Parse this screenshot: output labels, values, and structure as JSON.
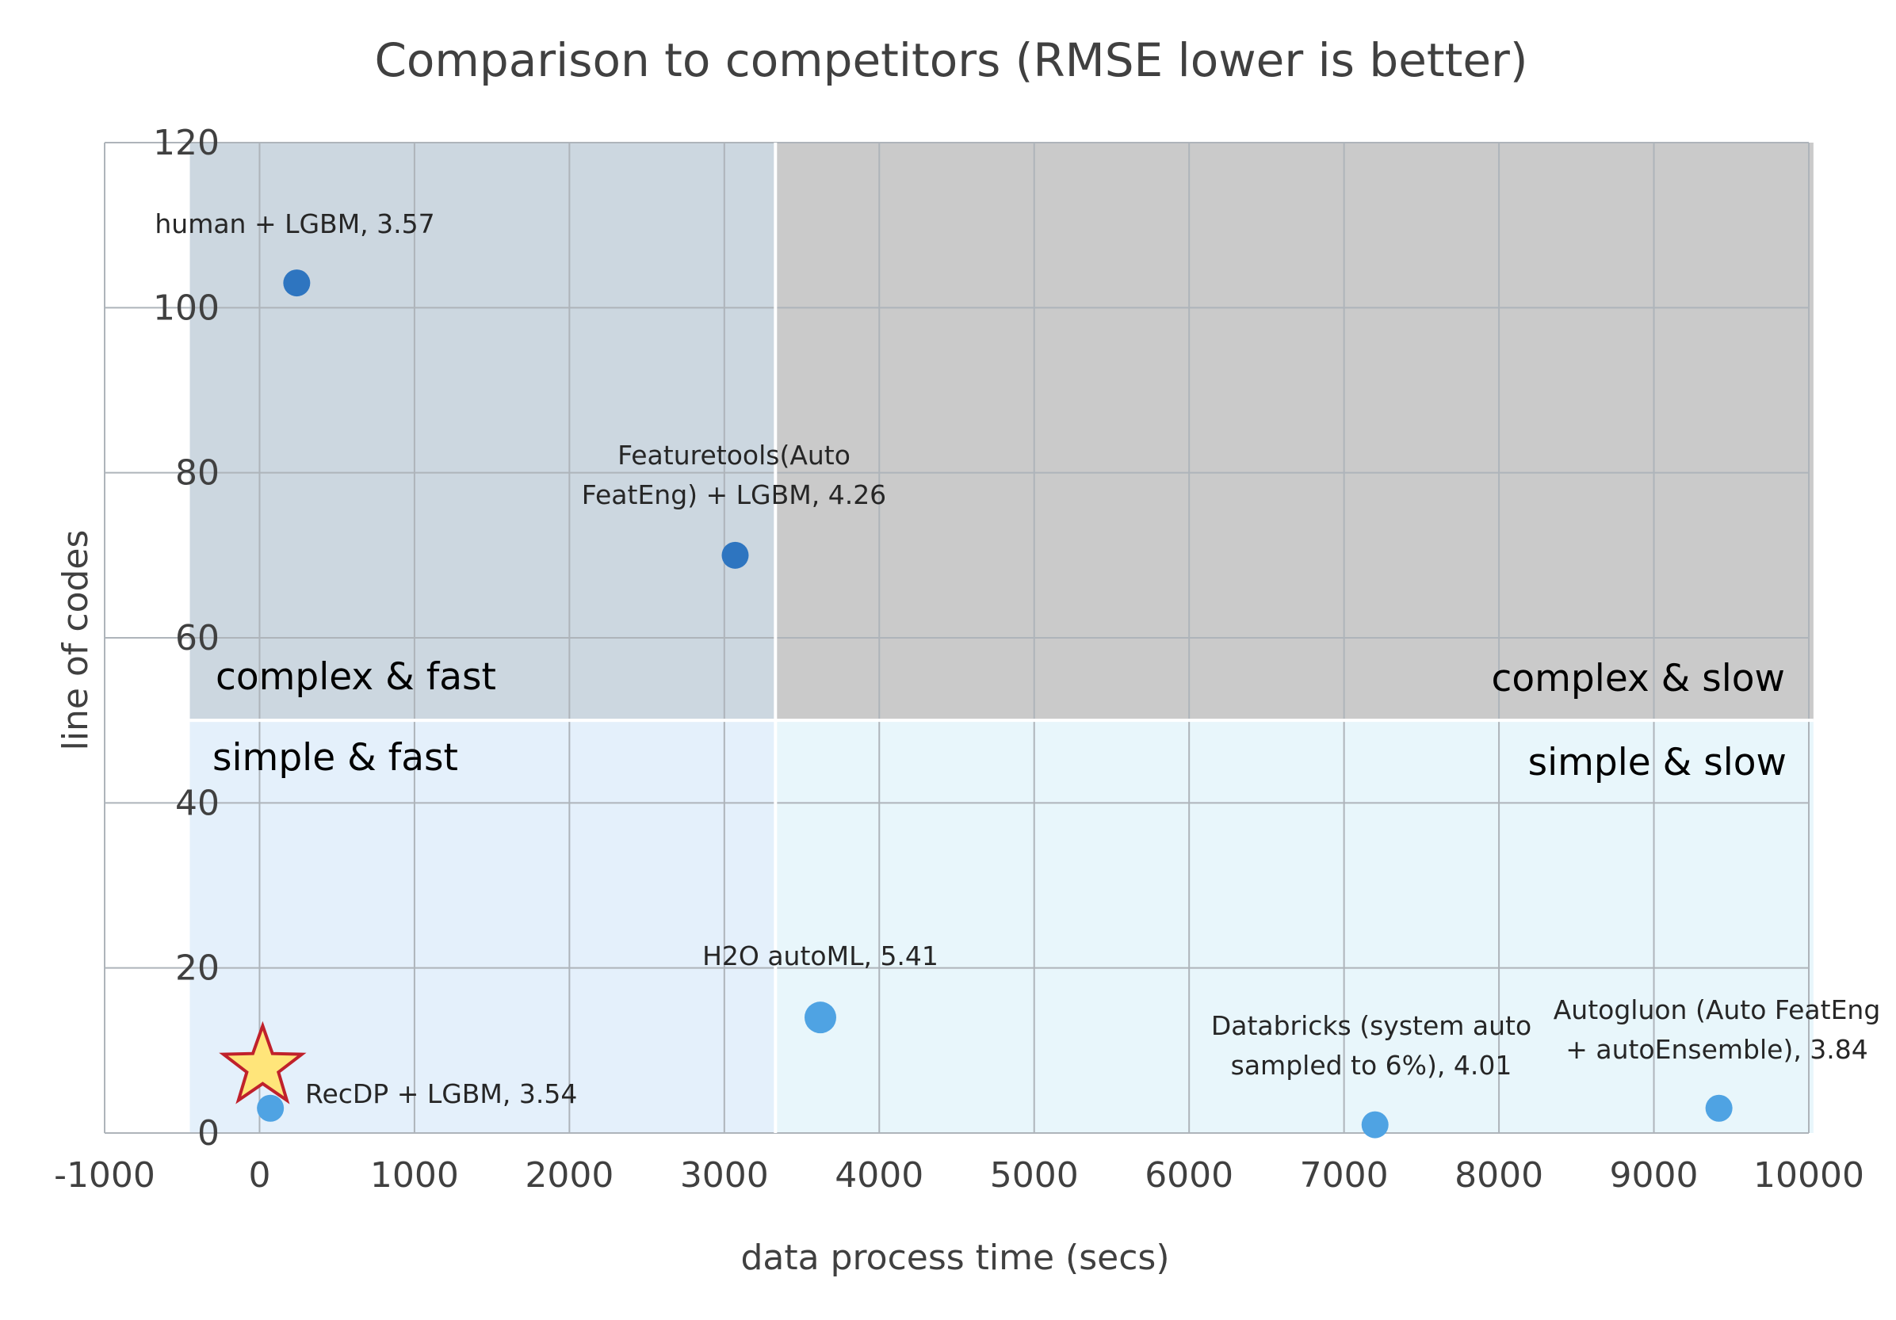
{
  "chart_data": {
    "type": "scatter",
    "title": "Comparison to competitors (RMSE lower is better)",
    "xlabel": "data process time (secs)",
    "ylabel": "line of codes",
    "xlim": [
      -1000,
      10000
    ],
    "ylim": [
      0,
      120
    ],
    "x_ticks": [
      -1000,
      0,
      1000,
      2000,
      3000,
      4000,
      5000,
      6000,
      7000,
      8000,
      9000,
      10000
    ],
    "y_ticks": [
      0,
      20,
      40,
      60,
      80,
      100,
      120
    ],
    "grid": true,
    "quadrants": [
      {
        "name": "complex-fast",
        "label": "complex & fast",
        "x_range": [
          -450,
          3330
        ],
        "y_range": [
          50,
          120
        ],
        "color": "#ccd7e0"
      },
      {
        "name": "complex-slow",
        "label": "complex & slow",
        "x_range": [
          3330,
          10030
        ],
        "y_range": [
          50,
          120
        ],
        "color": "#cacaca"
      },
      {
        "name": "simple-fast",
        "label": "simple & fast",
        "x_range": [
          -450,
          3330
        ],
        "y_range": [
          0,
          50
        ],
        "color": "#e4f0fb"
      },
      {
        "name": "simple-slow",
        "label": "simple & slow",
        "x_range": [
          3330,
          10030
        ],
        "y_range": [
          0,
          50
        ],
        "color": "#e8f6fb"
      }
    ],
    "points": [
      {
        "name": "human-lgbm",
        "label_lines": [
          "human + LGBM, 3.57"
        ],
        "x": 240,
        "y": 103,
        "color": "#2e75c0"
      },
      {
        "name": "featuretools-lgbm",
        "label_lines": [
          "Featuretools(Auto",
          "FeatEng) + LGBM, 4.26"
        ],
        "x": 3070,
        "y": 70,
        "color": "#2e75c0"
      },
      {
        "name": "h2o-automl",
        "label_lines": [
          "H2O autoML, 5.41"
        ],
        "x": 3620,
        "y": 14,
        "color": "#4fa3e3"
      },
      {
        "name": "databricks",
        "label_lines": [
          "Databricks (system auto",
          "sampled to 6%), 4.01"
        ],
        "x": 7200,
        "y": 1,
        "color": "#4fa3e3"
      },
      {
        "name": "autogluon",
        "label_lines": [
          "Autogluon (Auto FeatEng",
          "+ autoEnsemble), 3.84"
        ],
        "x": 9420,
        "y": 3,
        "color": "#4fa3e3"
      },
      {
        "name": "recdp-lgbm",
        "label_lines": [
          "RecDP + LGBM, 3.54"
        ],
        "x": 70,
        "y": 3,
        "color": "#4fa3e3"
      }
    ],
    "highlight": {
      "name": "recdp-star",
      "x": 20,
      "y": 8,
      "fill": "#ffe57a",
      "stroke": "#c0212b"
    }
  }
}
